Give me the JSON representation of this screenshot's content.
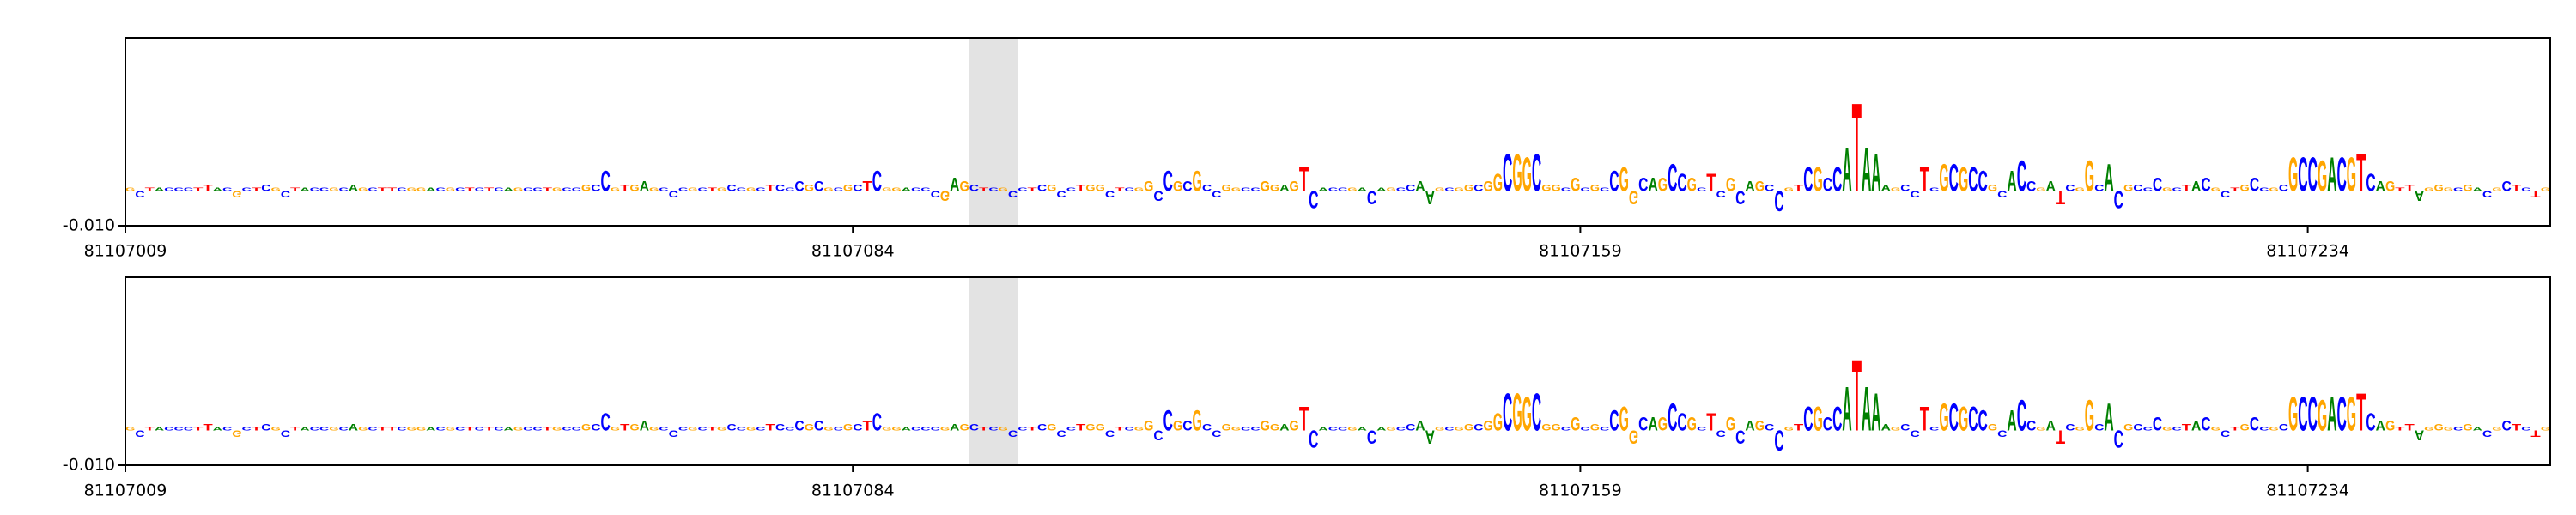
{
  "chart_data": [
    {
      "type": "logo",
      "sequence": "GCTACCCTTACGCTCGCTACCGCAGCTTCGGACGCTCTCAGCCTGCCGCCGTGAGCCCGCTGCCGCTCCCGCGCGCTCGGACCCGAGCTCGCCTCGCCTGGCTCGGCCGCGCCGGCCGGAGTCACCGACAGCCAAGCGGCGGCGGCGGCGCGCCGGCAGCCGCTCGCAGCCGTCGCCATAAAGCCTCGCGCCGCACCGATCGGCACGCCCGCTACGCTGCCGCGCCGACGTCAGTTAGGGCGACGCTCTG",
      "values": [
        0.001,
        -0.002,
        0.001,
        0.001,
        0.001,
        0.001,
        0.001,
        0.001,
        0.002,
        0.001,
        0.001,
        -0.002,
        0.001,
        0.001,
        0.002,
        0.001,
        -0.002,
        0.001,
        0.001,
        0.001,
        0.001,
        0.001,
        0.001,
        0.002,
        0.001,
        0.001,
        0.001,
        0.001,
        0.001,
        0.001,
        0.001,
        0.001,
        0.001,
        0.001,
        0.001,
        0.001,
        0.001,
        0.001,
        0.001,
        0.001,
        0.001,
        0.001,
        0.001,
        0.001,
        0.001,
        0.001,
        0.001,
        0.002,
        0.002,
        0.006,
        0.001,
        0.002,
        0.002,
        0.003,
        0.001,
        0.001,
        -0.002,
        0.001,
        0.001,
        0.001,
        0.001,
        0.001,
        0.002,
        0.001,
        0.001,
        0.001,
        0.002,
        0.002,
        0.001,
        0.003,
        0.002,
        0.003,
        0.001,
        0.001,
        0.002,
        0.002,
        0.003,
        0.006,
        0.001,
        0.001,
        0.001,
        0.001,
        0.001,
        -0.002,
        -0.003,
        0.004,
        0.003,
        0.002,
        0.001,
        0.001,
        0.001,
        -0.002,
        0.001,
        0.001,
        0.002,
        0.002,
        -0.002,
        0.001,
        0.002,
        0.002,
        0.002,
        -0.002,
        0.001,
        0.001,
        0.001,
        0.003,
        -0.003,
        0.006,
        0.003,
        0.003,
        0.006,
        0.002,
        -0.002,
        0.002,
        0.001,
        0.001,
        0.001,
        0.003,
        0.002,
        0.002,
        0.003,
        0.007,
        -0.005,
        0.001,
        0.001,
        0.001,
        0.001,
        0.001,
        -0.004,
        0.001,
        0.001,
        0.001,
        0.002,
        0.003,
        -0.004,
        0.001,
        0.001,
        0.001,
        0.002,
        0.002,
        0.003,
        0.005,
        0.011,
        0.011,
        0.01,
        0.011,
        0.002,
        0.002,
        0.001,
        0.004,
        0.001,
        0.002,
        0.001,
        0.006,
        0.007,
        -0.004,
        0.004,
        0.004,
        0.004,
        0.008,
        0.005,
        0.004,
        0.001,
        0.005,
        -0.002,
        0.004,
        -0.004,
        0.003,
        0.003,
        0.002,
        -0.006,
        0.001,
        0.002,
        0.007,
        0.007,
        0.004,
        0.007,
        0.013,
        0.026,
        0.013,
        0.011,
        0.002,
        0.001,
        0.002,
        -0.002,
        0.007,
        0.001,
        0.008,
        0.008,
        0.007,
        0.007,
        0.006,
        0.002,
        -0.002,
        0.006,
        0.009,
        0.003,
        0.001,
        0.003,
        -0.004,
        0.002,
        0.001,
        0.009,
        0.002,
        0.008,
        -0.005,
        0.002,
        0.002,
        0.001,
        0.004,
        0.001,
        0.001,
        0.002,
        0.003,
        0.004,
        0.001,
        -0.002,
        0.001,
        0.002,
        0.004,
        0.001,
        0.001,
        0.002,
        0.01,
        0.01,
        0.01,
        0.009,
        0.01,
        0.01,
        0.01,
        0.011,
        0.005,
        0.003,
        0.003,
        0.001,
        0.002,
        -0.003,
        0.001,
        0.002,
        0.001,
        0.001,
        0.002,
        0.001,
        -0.002,
        0.001,
        0.003,
        0.002,
        0.001,
        -0.002,
        0.001
      ],
      "colors": {
        "A": "#008000",
        "C": "#0000ff",
        "G": "#ffa500",
        "T": "#ff0000"
      },
      "highlight": [
        81107096,
        81107101
      ],
      "xlim": [
        81107009,
        81107259
      ],
      "xticks": [
        81107009,
        81107084,
        81107159,
        81107234
      ],
      "ylim": [
        -0.01,
        0.044
      ],
      "yticks": [
        {
          "value": -0.01,
          "label": "-0.010"
        }
      ]
    },
    {
      "type": "logo",
      "sequence": "GCTACCCTTACGCTCGCTACCGCAGCTTCGGACGCTCTCAGCCTGCCGCCGTGAGCCCGCTGCCGCTCCCGCGCGCTCGGACCCGAGCTCGCCTCGCCTGGCTCGGCCGCGCCGGCCGGAGTCACCGACAGCCAAGCGGCGGCGGCGGCGCGCCGGCAGCCGCTCGCAGCCGTCGCCATAAAGCCTCGCGCCGCACCGATCGGCACGCCCGCTACGCTGCCGCGCCGACGTCAGTTAGGGCGACGCTCTG",
      "values": [
        0.001,
        -0.002,
        0.001,
        0.001,
        0.001,
        0.001,
        0.001,
        0.001,
        0.002,
        0.001,
        0.001,
        -0.002,
        0.001,
        0.001,
        0.002,
        0.001,
        -0.002,
        0.001,
        0.001,
        0.001,
        0.001,
        0.001,
        0.001,
        0.002,
        0.001,
        0.001,
        0.001,
        0.001,
        0.001,
        0.001,
        0.001,
        0.001,
        0.001,
        0.001,
        0.001,
        0.001,
        0.001,
        0.001,
        0.001,
        0.001,
        0.001,
        0.001,
        0.001,
        0.001,
        0.001,
        0.001,
        0.001,
        0.002,
        0.002,
        0.005,
        0.001,
        0.002,
        0.002,
        0.003,
        0.001,
        0.001,
        -0.002,
        0.001,
        0.001,
        0.001,
        0.001,
        0.001,
        0.002,
        0.001,
        0.001,
        0.001,
        0.002,
        0.002,
        0.001,
        0.003,
        0.002,
        0.003,
        0.001,
        0.001,
        0.002,
        0.002,
        0.003,
        0.005,
        0.001,
        0.001,
        0.001,
        0.001,
        0.001,
        0.001,
        0.001,
        0.002,
        0.002,
        0.002,
        0.001,
        0.001,
        0.001,
        -0.002,
        0.001,
        0.001,
        0.002,
        0.002,
        -0.002,
        0.001,
        0.002,
        0.002,
        0.002,
        -0.002,
        0.001,
        0.001,
        0.001,
        0.003,
        -0.003,
        0.006,
        0.003,
        0.003,
        0.006,
        0.002,
        -0.002,
        0.002,
        0.001,
        0.001,
        0.001,
        0.003,
        0.002,
        0.002,
        0.003,
        0.007,
        -0.005,
        0.001,
        0.001,
        0.001,
        0.001,
        0.001,
        -0.004,
        0.001,
        0.001,
        0.001,
        0.002,
        0.003,
        -0.004,
        0.001,
        0.001,
        0.001,
        0.002,
        0.002,
        0.003,
        0.005,
        0.011,
        0.011,
        0.01,
        0.011,
        0.002,
        0.002,
        0.001,
        0.004,
        0.001,
        0.002,
        0.001,
        0.006,
        0.007,
        -0.004,
        0.004,
        0.004,
        0.004,
        0.008,
        0.005,
        0.004,
        0.001,
        0.005,
        -0.002,
        0.004,
        -0.004,
        0.003,
        0.003,
        0.002,
        -0.006,
        0.001,
        0.002,
        0.007,
        0.007,
        0.004,
        0.007,
        0.013,
        0.021,
        0.013,
        0.011,
        0.002,
        0.001,
        0.002,
        -0.002,
        0.007,
        0.001,
        0.008,
        0.008,
        0.007,
        0.007,
        0.006,
        0.002,
        -0.002,
        0.006,
        0.009,
        0.003,
        0.001,
        0.003,
        -0.004,
        0.002,
        0.001,
        0.009,
        0.002,
        0.008,
        -0.005,
        0.002,
        0.002,
        0.001,
        0.004,
        0.001,
        0.001,
        0.002,
        0.003,
        0.004,
        0.001,
        -0.002,
        0.001,
        0.002,
        0.004,
        0.001,
        0.001,
        0.002,
        0.01,
        0.01,
        0.01,
        0.009,
        0.01,
        0.01,
        0.01,
        0.011,
        0.005,
        0.003,
        0.003,
        0.001,
        0.002,
        -0.003,
        0.001,
        0.002,
        0.001,
        0.001,
        0.002,
        0.001,
        -0.002,
        0.001,
        0.003,
        0.002,
        0.001,
        -0.002,
        0.001
      ],
      "colors": {
        "A": "#008000",
        "C": "#0000ff",
        "G": "#ffa500",
        "T": "#ff0000"
      },
      "highlight": [
        81107096,
        81107101
      ],
      "xlim": [
        81107009,
        81107259
      ],
      "xticks": [
        81107009,
        81107084,
        81107159,
        81107234
      ],
      "ylim": [
        -0.01,
        0.044
      ],
      "yticks": [
        {
          "value": -0.01,
          "label": "-0.010"
        }
      ]
    }
  ]
}
